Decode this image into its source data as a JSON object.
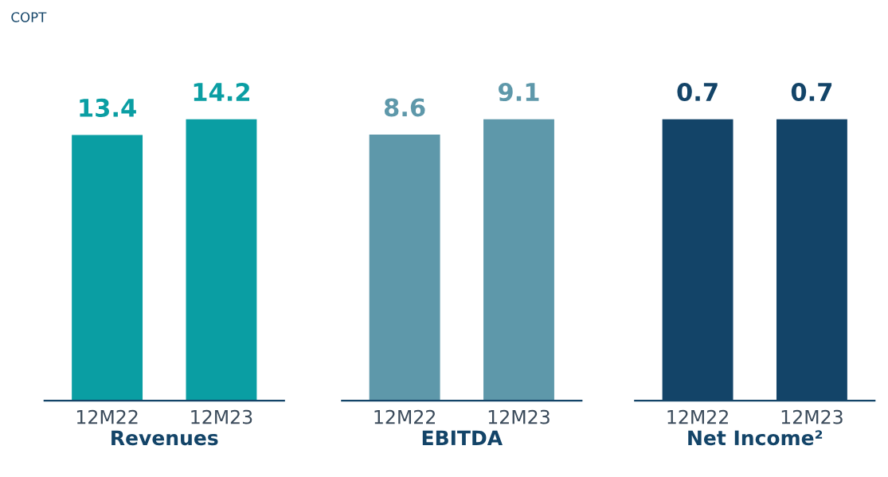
{
  "chart_data": [
    {
      "type": "bar",
      "ylabel": "COPT",
      "xlabel": "Revenues",
      "categories": [
        "12M22",
        "12M23"
      ],
      "values": [
        13.4,
        14.2
      ],
      "color": "#0a9ea3",
      "data_labels": true,
      "tick_labels": "x",
      "grid": false
    },
    {
      "type": "bar",
      "xlabel": "EBITDA",
      "categories": [
        "12M22",
        "12M23"
      ],
      "values": [
        8.6,
        9.1
      ],
      "color": "#5e98aa",
      "data_labels": true,
      "tick_labels": "x",
      "grid": false
    },
    {
      "type": "bar",
      "xlabel": "Net Income²",
      "categories": [
        "12M22",
        "12M23"
      ],
      "values": [
        0.7,
        0.7
      ],
      "color": "#134468",
      "data_labels": true,
      "tick_labels": "x",
      "grid": false
    }
  ]
}
